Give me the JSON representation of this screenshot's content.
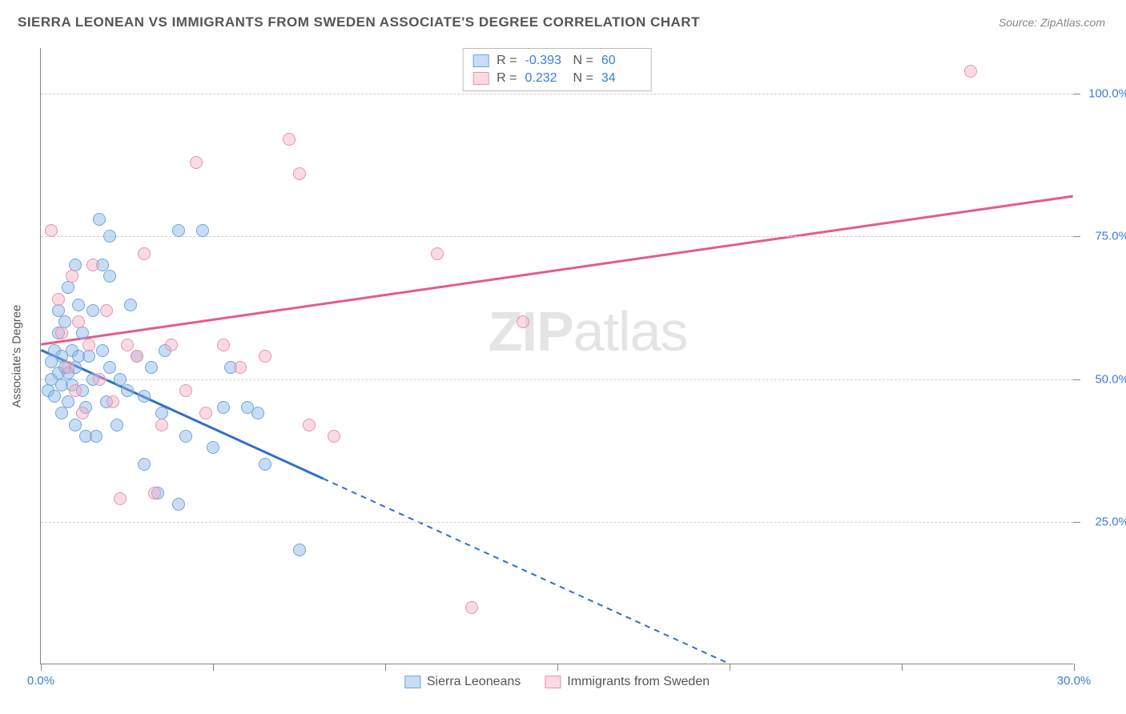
{
  "title": "SIERRA LEONEAN VS IMMIGRANTS FROM SWEDEN ASSOCIATE'S DEGREE CORRELATION CHART",
  "source": "Source: ZipAtlas.com",
  "watermark_bold": "ZIP",
  "watermark_light": "atlas",
  "y_axis_label": "Associate's Degree",
  "chart": {
    "type": "scatter",
    "xlim": [
      0,
      30
    ],
    "ylim": [
      0,
      108
    ],
    "x_ticks": [
      0,
      5,
      10,
      15,
      20,
      25,
      30
    ],
    "x_tick_labels": {
      "0": "0.0%",
      "30": "30.0%"
    },
    "y_ticks": [
      25,
      50,
      75,
      100
    ],
    "y_tick_labels": {
      "25": "25.0%",
      "50": "50.0%",
      "75": "75.0%",
      "100": "100.0%"
    },
    "grid_color": "#d0d0d0",
    "axis_color": "#888888",
    "tick_label_color": "#3b7dd8",
    "background_color": "#ffffff",
    "series": [
      {
        "name": "Sierra Leoneans",
        "fill_color": "rgba(133,179,232,0.45)",
        "stroke_color": "#6ea6db",
        "line_color": "#2f6fc7",
        "R": "-0.393",
        "N": "60",
        "regression": {
          "x1": 0,
          "y1": 55,
          "x2": 20,
          "y2": 0,
          "solid_until_x": 8.2
        },
        "points": [
          [
            0.2,
            48
          ],
          [
            0.3,
            50
          ],
          [
            0.3,
            53
          ],
          [
            0.4,
            55
          ],
          [
            0.4,
            47
          ],
          [
            0.5,
            51
          ],
          [
            0.5,
            58
          ],
          [
            0.5,
            62
          ],
          [
            0.6,
            49
          ],
          [
            0.6,
            54
          ],
          [
            0.6,
            44
          ],
          [
            0.7,
            52
          ],
          [
            0.7,
            60
          ],
          [
            0.8,
            46
          ],
          [
            0.8,
            51
          ],
          [
            0.8,
            66
          ],
          [
            0.9,
            55
          ],
          [
            0.9,
            49
          ],
          [
            1.0,
            42
          ],
          [
            1.0,
            52
          ],
          [
            1.0,
            70
          ],
          [
            1.1,
            54
          ],
          [
            1.1,
            63
          ],
          [
            1.2,
            48
          ],
          [
            1.2,
            58
          ],
          [
            1.3,
            45
          ],
          [
            1.3,
            40
          ],
          [
            1.4,
            54
          ],
          [
            1.5,
            50
          ],
          [
            1.5,
            62
          ],
          [
            1.6,
            40
          ],
          [
            1.7,
            78
          ],
          [
            1.8,
            70
          ],
          [
            1.8,
            55
          ],
          [
            1.9,
            46
          ],
          [
            2.0,
            52
          ],
          [
            2.0,
            68
          ],
          [
            2.2,
            42
          ],
          [
            2.3,
            50
          ],
          [
            2.5,
            48
          ],
          [
            2.6,
            63
          ],
          [
            2.8,
            54
          ],
          [
            3.0,
            35
          ],
          [
            3.0,
            47
          ],
          [
            3.2,
            52
          ],
          [
            3.4,
            30
          ],
          [
            3.5,
            44
          ],
          [
            3.6,
            55
          ],
          [
            4.0,
            28
          ],
          [
            4.2,
            40
          ],
          [
            4.7,
            76
          ],
          [
            5.0,
            38
          ],
          [
            5.3,
            45
          ],
          [
            5.5,
            52
          ],
          [
            6.0,
            45
          ],
          [
            6.3,
            44
          ],
          [
            6.5,
            35
          ],
          [
            7.5,
            20
          ],
          [
            4.0,
            76
          ],
          [
            2.0,
            75
          ]
        ]
      },
      {
        "name": "Immigrants from Sweden",
        "fill_color": "rgba(246,172,195,0.45)",
        "stroke_color": "#e793ad",
        "line_color": "#e65a8a",
        "R": "0.232",
        "N": "34",
        "regression": {
          "x1": 0,
          "y1": 56,
          "x2": 30,
          "y2": 82,
          "solid_until_x": 30
        },
        "points": [
          [
            0.3,
            76
          ],
          [
            0.5,
            64
          ],
          [
            0.6,
            58
          ],
          [
            0.8,
            52
          ],
          [
            0.9,
            68
          ],
          [
            1.0,
            48
          ],
          [
            1.1,
            60
          ],
          [
            1.2,
            44
          ],
          [
            1.4,
            56
          ],
          [
            1.5,
            70
          ],
          [
            1.7,
            50
          ],
          [
            1.9,
            62
          ],
          [
            2.1,
            46
          ],
          [
            2.3,
            29
          ],
          [
            2.5,
            56
          ],
          [
            2.8,
            54
          ],
          [
            3.0,
            72
          ],
          [
            3.3,
            30
          ],
          [
            3.5,
            42
          ],
          [
            3.8,
            56
          ],
          [
            4.2,
            48
          ],
          [
            4.5,
            88
          ],
          [
            4.8,
            44
          ],
          [
            5.3,
            56
          ],
          [
            5.8,
            52
          ],
          [
            6.5,
            54
          ],
          [
            7.2,
            92
          ],
          [
            7.5,
            86
          ],
          [
            7.8,
            42
          ],
          [
            8.5,
            40
          ],
          [
            11.5,
            72
          ],
          [
            12.5,
            10
          ],
          [
            14.0,
            60
          ],
          [
            27.0,
            104
          ]
        ]
      }
    ]
  },
  "legend_top": {
    "r_label": "R =",
    "n_label": "N ="
  },
  "legend_bottom": {
    "items": [
      "Sierra Leoneans",
      "Immigrants from Sweden"
    ]
  }
}
